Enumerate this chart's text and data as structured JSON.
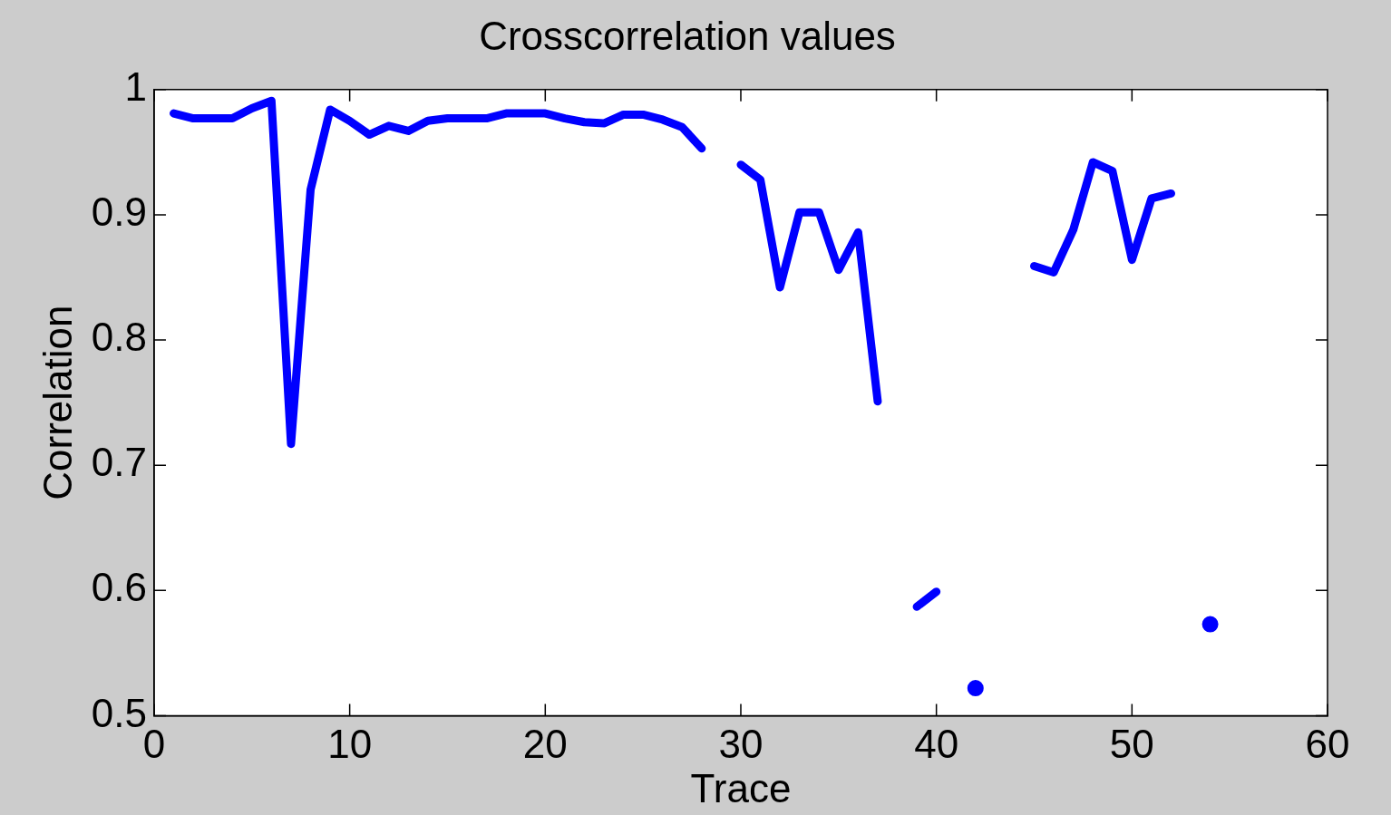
{
  "chart_data": {
    "type": "line",
    "title": "Crosscorrelation values",
    "xlabel": "Trace",
    "ylabel": "Correlation",
    "x": [
      1,
      2,
      3,
      4,
      5,
      6,
      7,
      8,
      9,
      10,
      11,
      12,
      13,
      14,
      15,
      16,
      17,
      18,
      19,
      20,
      21,
      22,
      23,
      24,
      25,
      26,
      27,
      28,
      29,
      30,
      31,
      32,
      33,
      34,
      35,
      36,
      37,
      38,
      39,
      40,
      41,
      42,
      43,
      44,
      45,
      46,
      47,
      48,
      49,
      50,
      51,
      52,
      53,
      54
    ],
    "series": [
      {
        "color": "#0000ff",
        "values": [
          0.981,
          0.977,
          0.977,
          0.977,
          0.985,
          0.991,
          0.717,
          0.92,
          0.984,
          0.975,
          0.964,
          0.971,
          0.967,
          0.975,
          0.977,
          0.977,
          0.977,
          0.981,
          0.981,
          0.981,
          0.977,
          0.974,
          0.973,
          0.98,
          0.98,
          0.976,
          0.97,
          0.953,
          null,
          0.94,
          0.928,
          0.842,
          0.902,
          0.902,
          0.856,
          0.886,
          0.751,
          null,
          0.587,
          0.599,
          null,
          0.522,
          null,
          null,
          0.859,
          0.854,
          0.888,
          0.942,
          0.935,
          0.864,
          0.913,
          0.917,
          null,
          0.573
        ]
      }
    ],
    "xlim": [
      0,
      60
    ],
    "xticks": [
      0,
      10,
      20,
      30,
      40,
      50,
      60
    ],
    "ylim": [
      0.5,
      1
    ],
    "yticks": [
      0.5,
      0.6,
      0.7,
      0.8,
      0.9,
      1
    ],
    "grid": false,
    "legend": false,
    "marker": "none",
    "line_style": "solid"
  }
}
